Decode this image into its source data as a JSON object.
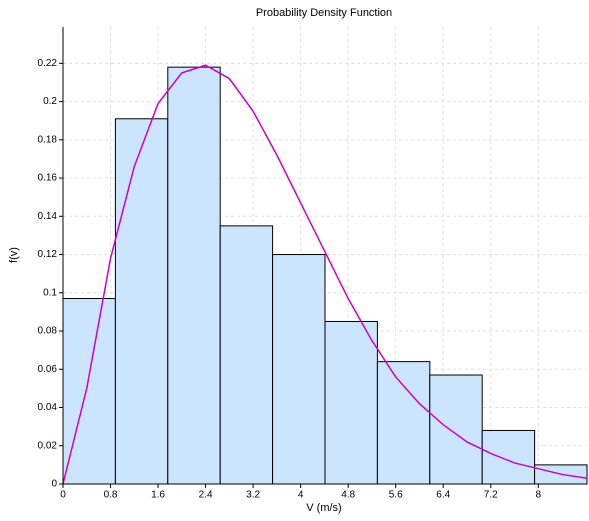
{
  "chart_data": {
    "type": "histogram",
    "title": "Probability Density Function",
    "x_label": "V (m/s)",
    "y_label": "f(v)",
    "bins": [
      0,
      0.882,
      1.764,
      2.646,
      3.528,
      4.41,
      5.292,
      6.174,
      7.056,
      7.938,
      8.82
    ],
    "values": [
      0.097,
      0.191,
      0.218,
      0.135,
      0.12,
      0.085,
      0.064,
      0.057,
      0.028,
      0.01
    ],
    "color": "#cce5ff",
    "series": [
      {
        "x": [
          0,
          0.4,
          0.8,
          1.2,
          1.6,
          2.0,
          2.4,
          2.8,
          3.2,
          3.6,
          4.0,
          4.4,
          4.8,
          5.2,
          5.6,
          6.0,
          6.4,
          6.8,
          7.2,
          7.6,
          8.0,
          8.4,
          8.82
        ],
        "values": [
          0,
          0.05,
          0.118,
          0.166,
          0.199,
          0.215,
          0.219,
          0.212,
          0.195,
          0.172,
          0.147,
          0.122,
          0.097,
          0.075,
          0.056,
          0.042,
          0.031,
          0.022,
          0.016,
          0.011,
          0.008,
          0.005,
          0.003
        ],
        "color": "#cc00cc"
      }
    ],
    "xlim": [
      0,
      8.82
    ],
    "ylim": [
      0,
      0.239
    ],
    "xticks": [
      0,
      0.8,
      1.6,
      2.4,
      3.2,
      4,
      4.8,
      5.6,
      6.4,
      7.2,
      8
    ],
    "yticks": [
      0,
      0.02,
      0.04,
      0.06,
      0.08,
      0.1,
      0.12,
      0.14,
      0.16,
      0.18,
      0.2,
      0.22
    ],
    "grid": true
  }
}
